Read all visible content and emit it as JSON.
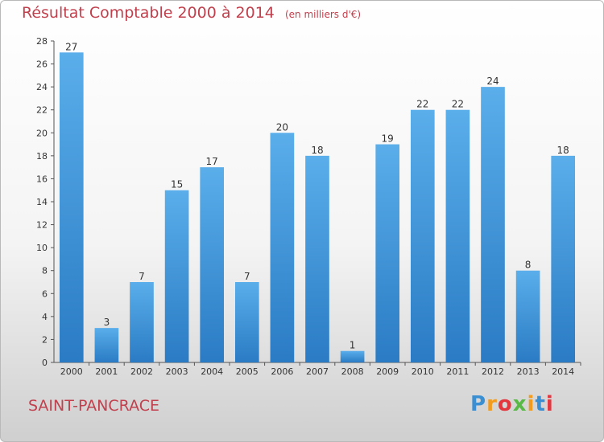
{
  "title": "Résultat Comptable 2000 à 2014",
  "subtitle": "(en milliers d'€)",
  "commune": "SAINT-PANCRACE",
  "logo": {
    "text": "Proxiti",
    "colors": [
      "#3a8fd3",
      "#f29b1d",
      "#e2373f",
      "#58b947",
      "#f29b1d",
      "#3a8fd3",
      "#e2373f"
    ]
  },
  "chart_data": {
    "type": "bar",
    "title": "Résultat Comptable 2000 à 2014",
    "ylabel": "en milliers d'€",
    "xlabel": "",
    "categories": [
      "2000",
      "2001",
      "2002",
      "2003",
      "2004",
      "2005",
      "2006",
      "2007",
      "2008",
      "2009",
      "2010",
      "2011",
      "2012",
      "2013",
      "2014"
    ],
    "values": [
      27,
      3,
      7,
      15,
      17,
      7,
      20,
      18,
      1,
      19,
      22,
      22,
      24,
      8,
      18
    ],
    "ylim": [
      0,
      28
    ],
    "yticks": [
      0,
      2,
      4,
      6,
      8,
      10,
      12,
      14,
      16,
      18,
      20,
      22,
      24,
      26,
      28
    ],
    "grid": false,
    "bar_color": "#4a9ee0"
  }
}
